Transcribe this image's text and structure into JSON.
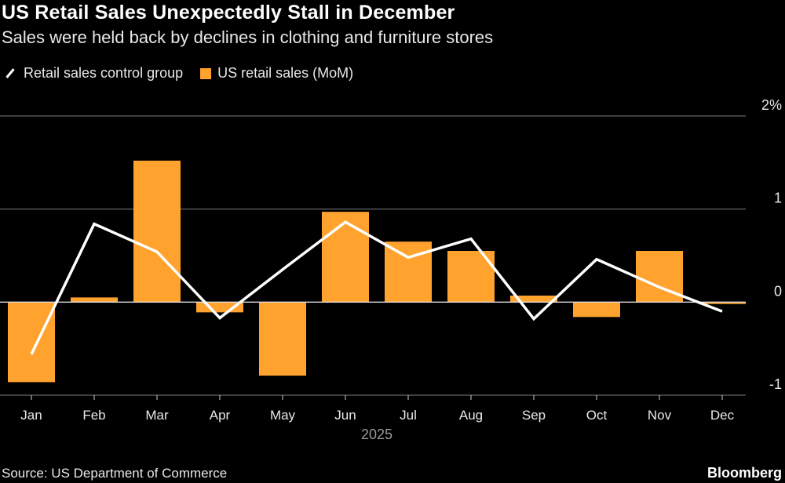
{
  "title": "US Retail Sales Unexpectedly Stall in December",
  "subtitle": "Sales were held back by declines in clothing and furniture stores",
  "source": "Source: US Department of Commerce",
  "brand": "Bloomberg",
  "colors": {
    "bar": "#FFA22E",
    "line": "#FFFFFF",
    "grid": "#666666",
    "background": "#000000"
  },
  "chart_data": {
    "type": "bar+line",
    "categories": [
      "Jan",
      "Feb",
      "Mar",
      "Apr",
      "May",
      "Jun",
      "Jul",
      "Aug",
      "Sep",
      "Oct",
      "Nov",
      "Dec"
    ],
    "xlabel": "2025",
    "y_ticks": [
      {
        "value": 2,
        "label": "2%"
      },
      {
        "value": 1,
        "label": "1"
      },
      {
        "value": 0,
        "label": "0"
      },
      {
        "value": -1,
        "label": "-1"
      }
    ],
    "ylim": [
      -1,
      2
    ],
    "grid": true,
    "legend_placement": "top-left",
    "series": [
      {
        "name": "Retail sales control group",
        "type": "line",
        "values": [
          -0.56,
          0.84,
          0.54,
          -0.17,
          0.35,
          0.86,
          0.48,
          0.68,
          -0.18,
          0.46,
          0.16,
          -0.1
        ]
      },
      {
        "name": "US retail sales (MoM)",
        "type": "bar",
        "values": [
          -0.86,
          0.05,
          1.52,
          -0.11,
          -0.79,
          0.97,
          0.65,
          0.55,
          0.07,
          -0.16,
          0.55,
          -0.02
        ]
      }
    ]
  }
}
